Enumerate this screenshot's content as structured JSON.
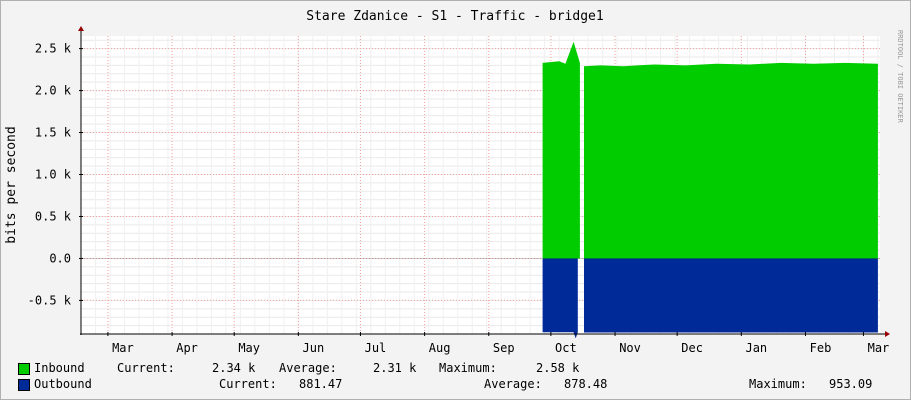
{
  "chart_data": {
    "type": "area",
    "title": "Stare Zdanice - S1 - Traffic - bridge1",
    "ylabel": "bits per second",
    "watermark": "RRDTOOL / TOBI OETIKER",
    "ylim": [
      -900,
      2650
    ],
    "xlim": [
      "2010-02-16",
      "2011-03-09"
    ],
    "yticks": [
      {
        "value": 2500,
        "label": "2.5 k"
      },
      {
        "value": 2000,
        "label": "2.0 k"
      },
      {
        "value": 1500,
        "label": "1.5 k"
      },
      {
        "value": 1000,
        "label": "1.0 k"
      },
      {
        "value": 500,
        "label": "0.5 k"
      },
      {
        "value": 0,
        "label": "0.0"
      },
      {
        "value": -500,
        "label": "-0.5 k"
      }
    ],
    "xticks": [
      {
        "date": "2010-03-01",
        "label": "Mar"
      },
      {
        "date": "2010-04-01",
        "label": "Apr"
      },
      {
        "date": "2010-05-01",
        "label": "May"
      },
      {
        "date": "2010-06-01",
        "label": "Jun"
      },
      {
        "date": "2010-07-01",
        "label": "Jul"
      },
      {
        "date": "2010-08-01",
        "label": "Aug"
      },
      {
        "date": "2010-09-01",
        "label": "Sep"
      },
      {
        "date": "2010-10-01",
        "label": "Oct"
      },
      {
        "date": "2010-11-01",
        "label": "Nov"
      },
      {
        "date": "2010-12-01",
        "label": "Dec"
      },
      {
        "date": "2011-01-01",
        "label": "Jan"
      },
      {
        "date": "2011-02-01",
        "label": "Feb"
      },
      {
        "date": "2011-03-01",
        "label": "Mar"
      }
    ],
    "grid": true,
    "legend": "bottom",
    "series": [
      {
        "name": "Inbound",
        "color": "#00cc00",
        "x": [
          "2010-09-27",
          "2010-10-05",
          "2010-10-08",
          "2010-10-12",
          "2010-10-15",
          "2010-10-16",
          "2010-10-17",
          "2010-10-25",
          "2010-11-05",
          "2010-11-20",
          "2010-12-05",
          "2010-12-20",
          "2011-01-05",
          "2011-01-20",
          "2011-02-05",
          "2011-02-20",
          "2011-03-08"
        ],
        "values": [
          2330,
          2350,
          2320,
          2580,
          2330,
          2300,
          2290,
          2300,
          2290,
          2310,
          2300,
          2320,
          2310,
          2330,
          2320,
          2330,
          2320
        ]
      },
      {
        "name": "Outbound",
        "color": "#002a97",
        "x": [
          "2010-09-27",
          "2010-10-12",
          "2010-10-13",
          "2010-10-14",
          "2010-10-17",
          "2011-03-08"
        ],
        "values": [
          -880,
          -880,
          -953,
          -880,
          -882,
          -882
        ]
      }
    ],
    "gap": {
      "from": "2010-10-15",
      "to": "2010-10-17"
    },
    "legend_entries": [
      {
        "name": "Inbound",
        "current_label": "Current:",
        "current": "2.34 k",
        "average_label": "Average:",
        "average": "2.31 k",
        "maximum_label": "Maximum:",
        "maximum": "2.58 k",
        "color": "#00cc00"
      },
      {
        "name": "Outbound",
        "current_label": "Current:",
        "current": "881.47",
        "average_label": "Average:",
        "average": "878.48",
        "maximum_label": "Maximum:",
        "maximum": "953.09",
        "color": "#002a97"
      }
    ]
  }
}
